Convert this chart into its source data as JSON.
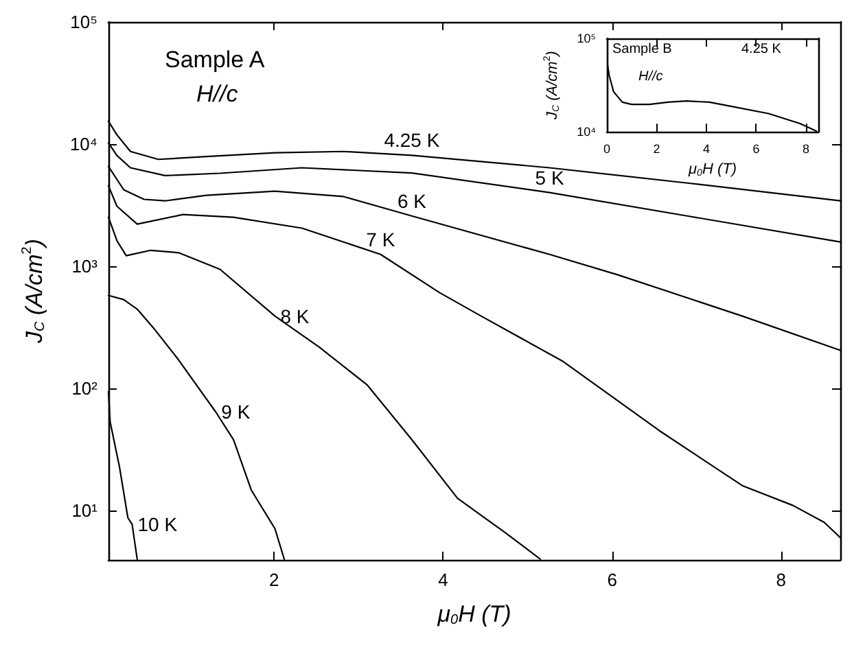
{
  "chart_data": [
    {
      "type": "line",
      "xlabel": "μ$_{0}$H (T)",
      "ylabel": "J$_{C}$ (A/cm$^{2}$)",
      "log": "y",
      "grid": false,
      "legend": false,
      "xlim": [
        0.04,
        8.7
      ],
      "xticks": [
        2,
        4,
        6,
        8
      ],
      "ylim": [
        3.94,
        100000
      ],
      "yticks": [
        {
          "value": 10,
          "label": "10¹"
        },
        {
          "value": 100,
          "label": "10²"
        },
        {
          "value": 1000,
          "label": "10³"
        },
        {
          "value": 10000,
          "label": "10⁴"
        },
        {
          "value": 100000,
          "label": "10⁵"
        }
      ],
      "annotations": [
        "Sample A",
        "H//c"
      ],
      "series": [
        {
          "name": "4.25 K",
          "color": "#000000",
          "x": [
            0.04,
            0.14,
            0.3,
            0.63,
            1.2,
            2.01,
            2.82,
            3.63,
            5.26,
            6.89,
            8.7
          ],
          "values": [
            15400,
            11900,
            8700,
            7500,
            7900,
            8500,
            8700,
            8100,
            6400,
            4800,
            3430
          ]
        },
        {
          "name": "5 K",
          "color": "#000000",
          "x": [
            0.04,
            0.14,
            0.3,
            0.71,
            1.36,
            2.33,
            3.63,
            5.26,
            6.89,
            8.7
          ],
          "values": [
            10200,
            8070,
            6400,
            5520,
            5770,
            6400,
            5800,
            4010,
            2580,
            1580
          ]
        },
        {
          "name": "6 K",
          "color": "#000000",
          "x": [
            0.04,
            0.22,
            0.46,
            0.71,
            1.2,
            2.01,
            2.82,
            3.63,
            5.26,
            6.07,
            7.54,
            8.7
          ],
          "values": [
            6560,
            4230,
            3530,
            3430,
            3810,
            4120,
            3720,
            2580,
            1250,
            849,
            391,
            205
          ]
        },
        {
          "name": "7 K",
          "color": "#000000",
          "x": [
            0.04,
            0.14,
            0.38,
            0.92,
            1.52,
            2.33,
            3.26,
            3.96,
            4.45,
            5.42,
            6.56,
            7.54,
            8.14,
            8.51,
            8.7
          ],
          "values": [
            4550,
            3100,
            2210,
            2650,
            2520,
            2050,
            1250,
            607,
            391,
            166,
            45,
            16,
            11,
            8,
            6
          ]
        },
        {
          "name": "8 K",
          "color": "#000000",
          "x": [
            0.04,
            0.14,
            0.25,
            0.54,
            0.87,
            1.36,
            2.01,
            2.54,
            3.1,
            3.63,
            4.17,
            4.72,
            5.15
          ],
          "values": [
            2520,
            1620,
            1220,
            1350,
            1290,
            943,
            391,
            216,
            107,
            38,
            12.6,
            6.7,
            4
          ]
        },
        {
          "name": "9 K",
          "color": "#000000",
          "x": [
            0.04,
            0.22,
            0.38,
            0.59,
            0.87,
            1.31,
            1.52,
            1.73,
            2.01,
            2.12
          ],
          "values": [
            577,
            533,
            445,
            302,
            171,
            64,
            38,
            14.7,
            7.1,
            4
          ]
        },
        {
          "name": "10 K",
          "color": "#000000",
          "x": [
            0.04,
            0.06,
            0.17,
            0.27,
            0.32,
            0.38
          ],
          "values": [
            94,
            53,
            22.8,
            8.7,
            7.7,
            4
          ]
        }
      ]
    },
    {
      "type": "line",
      "xlabel": "μ$_{0}$H (T)",
      "ylabel": "J$_{C}$ (A/cm$^{2}$)",
      "log": "y",
      "grid": false,
      "legend": false,
      "xlim": [
        0,
        8.5
      ],
      "xticks": [
        0,
        2,
        4,
        6,
        8
      ],
      "ylim": [
        10000,
        100000
      ],
      "yticks": [
        {
          "value": 10000,
          "label": "10⁴"
        },
        {
          "value": 100000,
          "label": "10⁵"
        }
      ],
      "annotations": [
        "Sample B",
        "H//c",
        "4.25 K"
      ],
      "series": [
        {
          "color": "#000000",
          "x": [
            0.02,
            0.09,
            0.27,
            0.62,
            0.99,
            1.71,
            2.46,
            3.2,
            4.12,
            5.02,
            6.5,
            7.76,
            8.42
          ],
          "values": [
            53600,
            40700,
            26900,
            20800,
            19700,
            19700,
            20800,
            21400,
            20800,
            18700,
            15700,
            12300,
            10200
          ]
        }
      ]
    }
  ]
}
